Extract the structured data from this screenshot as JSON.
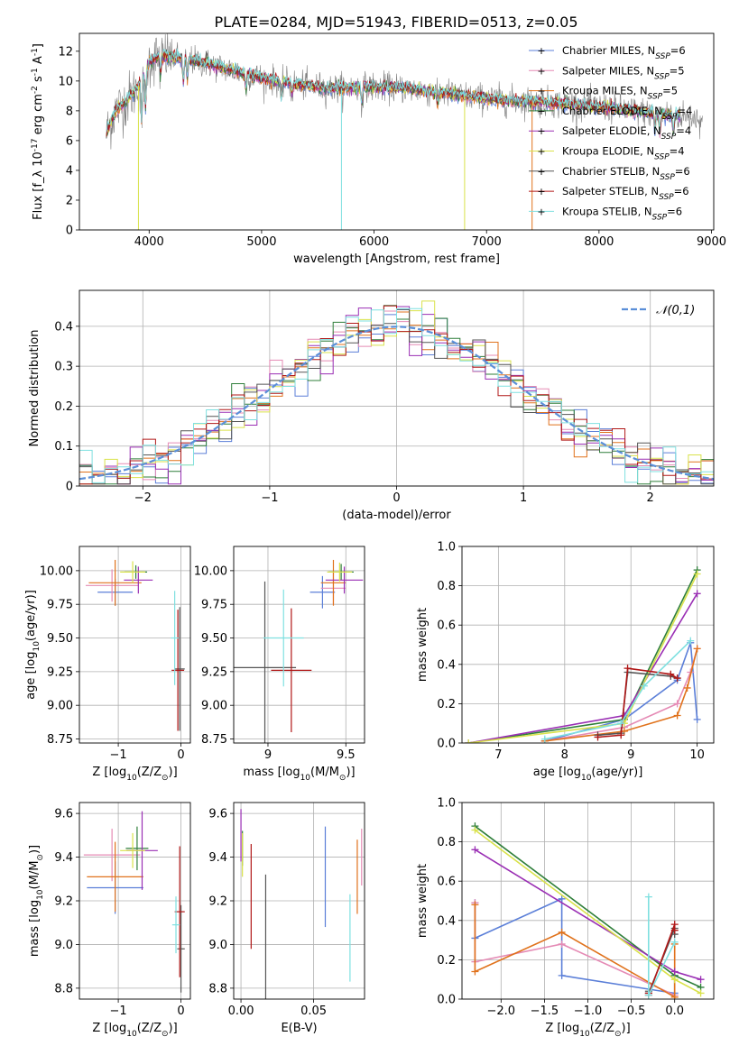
{
  "figure_title": "PLATE=0284, MJD=51943, FIBERID=0513, z=0.05",
  "colors": {
    "Chabrier MILES": "#5b7fd8",
    "Salpeter MILES": "#e58bb5",
    "Kroupa MILES": "#e0721c",
    "Chabrier ELODIE": "#2f7f3a",
    "Salpeter ELODIE": "#9a2fb4",
    "Kroupa ELODIE": "#d9e24a",
    "Chabrier STELIB": "#555555",
    "Salpeter STELIB": "#b01717",
    "Kroupa STELIB": "#7fe0e0",
    "data": "#808080",
    "gauss": "#5b8fd8"
  },
  "chart_data": [
    {
      "id": "spectrum",
      "type": "line",
      "title": "PLATE=0284, MJD=51943, FIBERID=0513, z=0.05",
      "xlabel": "wavelength [Angstrom, rest frame]",
      "ylabel": "Flux [f_λ 10^-17 erg cm^-2 s^-1 A^-1]",
      "xlim": [
        3380,
        9020
      ],
      "ylim": [
        0,
        13.2
      ],
      "xticks": [
        4000,
        5000,
        6000,
        7000,
        8000,
        9000
      ],
      "yticks": [
        0,
        2,
        4,
        6,
        8,
        10,
        12
      ],
      "grid": false,
      "legend_position": "upper right",
      "legend": [
        "Chabrier MILES, N_SSP=6",
        "Salpeter MILES, N_SSP=5",
        "Kroupa MILES, N_SSP=5",
        "Chabrier ELODIE, N_SSP=4",
        "Salpeter ELODIE, N_SSP=4",
        "Kroupa ELODIE, N_SSP=4",
        "Chabrier STELIB, N_SSP=6",
        "Salpeter STELIB, N_SSP=6",
        "Kroupa STELIB, N_SSP=6"
      ],
      "continuum": {
        "x": [
          3620,
          3700,
          3800,
          3900,
          4000,
          4100,
          4300,
          4500,
          4700,
          5000,
          5300,
          5600,
          6000,
          6300,
          6600,
          6900,
          7200,
          7500,
          7800,
          8100,
          8400,
          8700,
          8900
        ],
        "y": [
          6.5,
          8.0,
          8.7,
          9.6,
          11.3,
          11.7,
          11.5,
          11.2,
          10.8,
          10.2,
          9.8,
          9.5,
          9.6,
          9.5,
          9.2,
          8.9,
          8.7,
          8.6,
          8.4,
          8.2,
          7.9,
          7.7,
          7.5
        ]
      },
      "data_noise_sigma": 0.9,
      "features": [
        {
          "x": 3933,
          "depth": 3.0
        },
        {
          "x": 3968,
          "depth": 2.5
        },
        {
          "x": 4101,
          "depth": 1.2
        },
        {
          "x": 4304,
          "depth": 1.5
        },
        {
          "x": 4340,
          "depth": 1.2
        },
        {
          "x": 4861,
          "depth": 1.0
        },
        {
          "x": 5175,
          "depth": 1.3
        },
        {
          "x": 5270,
          "depth": 0.7
        },
        {
          "x": 5890,
          "depth": 1.0
        },
        {
          "x": 6563,
          "depth": 0.7
        },
        {
          "x": 8498,
          "depth": 1.1
        },
        {
          "x": 8542,
          "depth": 1.3
        },
        {
          "x": 8662,
          "depth": 1.2
        }
      ],
      "spikes": [
        {
          "x": 3905,
          "color": "#d9e24a"
        },
        {
          "x": 5710,
          "color": "#7fe0e0"
        },
        {
          "x": 6805,
          "color": "#d9e24a"
        },
        {
          "x": 7405,
          "color": "#e0721c"
        }
      ]
    },
    {
      "id": "residuals",
      "type": "histogram",
      "xlabel": "(data-model)/error",
      "ylabel": "Normed distribution",
      "xlim": [
        -2.5,
        2.5
      ],
      "ylim": [
        0,
        0.49
      ],
      "xticks": [
        -2,
        -1,
        0,
        1,
        2
      ],
      "yticks": [
        0.0,
        0.1,
        0.2,
        0.3,
        0.4
      ],
      "grid": true,
      "legend_position": "upper right",
      "legend": [
        "𝒩(0,1)"
      ],
      "bin_width": 0.1,
      "series_order": [
        "Chabrier MILES",
        "Salpeter MILES",
        "Kroupa MILES",
        "Chabrier ELODIE",
        "Salpeter ELODIE",
        "Kroupa ELODIE",
        "Chabrier STELIB",
        "Salpeter STELIB",
        "Kroupa STELIB"
      ],
      "gauss_sigma": 1.0
    },
    {
      "id": "age_vs_Z",
      "type": "errorbar",
      "xlabel": "Z [log10(Z/Z⊙)]",
      "ylabel": "age  [log10(age/yr)]",
      "xlim": [
        -1.62,
        0.15
      ],
      "ylim": [
        8.72,
        10.18
      ],
      "xticks": [
        -1,
        0
      ],
      "yticks": [
        8.75,
        9.0,
        9.25,
        9.5,
        9.75,
        10.0
      ],
      "ytick_format": 2,
      "grid": true,
      "points": [
        {
          "series": "Chabrier MILES",
          "x": -1.05,
          "xerr": 0.28,
          "y": 9.84,
          "yerr": 0.1
        },
        {
          "series": "Salpeter MILES",
          "x": -1.1,
          "xerr": 0.42,
          "y": 9.89,
          "yerr": 0.12
        },
        {
          "series": "Kroupa MILES",
          "x": -1.05,
          "xerr": 0.42,
          "y": 9.91,
          "yerr": 0.17
        },
        {
          "series": "Chabrier ELODIE",
          "x": -0.72,
          "xerr": 0.18,
          "y": 9.99,
          "yerr": 0.05
        },
        {
          "series": "Salpeter ELODIE",
          "x": -0.68,
          "xerr": 0.23,
          "y": 9.93,
          "yerr": 0.1
        },
        {
          "series": "Kroupa ELODIE",
          "x": -0.77,
          "xerr": 0.2,
          "y": 9.99,
          "yerr": 0.08
        },
        {
          "series": "Chabrier STELIB",
          "x": -0.02,
          "xerr": 0.08,
          "y": 9.27,
          "yerr": 0.46
        },
        {
          "series": "Salpeter STELIB",
          "x": -0.05,
          "xerr": 0.1,
          "y": 9.26,
          "yerr": 0.45
        },
        {
          "series": "Kroupa STELIB",
          "x": -0.1,
          "xerr": 0.06,
          "y": 9.5,
          "yerr": 0.35
        }
      ]
    },
    {
      "id": "age_vs_mass",
      "type": "errorbar",
      "xlabel": "mass [log10(M/M⊙)]",
      "ylabel": "",
      "xlim": [
        8.78,
        9.62
      ],
      "ylim": [
        8.72,
        10.18
      ],
      "xticks": [
        9.0,
        9.5
      ],
      "yticks": [
        8.75,
        9.0,
        9.25,
        9.5,
        9.75,
        10.0
      ],
      "ytick_format": 2,
      "grid": true,
      "points": [
        {
          "series": "Chabrier MILES",
          "x": 9.35,
          "xerr": 0.08,
          "y": 9.84,
          "yerr": 0.12
        },
        {
          "series": "Salpeter MILES",
          "x": 9.42,
          "xerr": 0.08,
          "y": 9.87,
          "yerr": 0.12
        },
        {
          "series": "Kroupa MILES",
          "x": 9.42,
          "xerr": 0.08,
          "y": 9.91,
          "yerr": 0.17
        },
        {
          "series": "Chabrier ELODIE",
          "x": 9.47,
          "xerr": 0.08,
          "y": 9.99,
          "yerr": 0.06
        },
        {
          "series": "Salpeter ELODIE",
          "x": 9.49,
          "xerr": 0.12,
          "y": 9.93,
          "yerr": 0.1
        },
        {
          "series": "Kroupa ELODIE",
          "x": 9.46,
          "xerr": 0.08,
          "y": 9.99,
          "yerr": 0.07
        },
        {
          "series": "Chabrier STELIB",
          "x": 8.98,
          "xerr": 0.2,
          "y": 9.28,
          "yerr": 0.64
        },
        {
          "series": "Salpeter STELIB",
          "x": 9.15,
          "xerr": 0.13,
          "y": 9.26,
          "yerr": 0.46
        },
        {
          "series": "Kroupa STELIB",
          "x": 9.1,
          "xerr": 0.13,
          "y": 9.5,
          "yerr": 0.36
        }
      ]
    },
    {
      "id": "weight_vs_age",
      "type": "line",
      "xlabel": "age  [log10(age/yr)]",
      "ylabel": "mass weight",
      "xlim": [
        6.45,
        10.25
      ],
      "ylim": [
        0,
        1
      ],
      "xticks": [
        7,
        8,
        9,
        10
      ],
      "yticks": [
        0.0,
        0.2,
        0.4,
        0.6,
        0.8,
        1.0
      ],
      "ytick_format": 1,
      "grid": true,
      "series": [
        {
          "name": "Chabrier MILES",
          "x": [
            7.7,
            8.9,
            9.7,
            9.9,
            10.0
          ],
          "y": [
            0.01,
            0.12,
            0.32,
            0.51,
            0.12
          ]
        },
        {
          "name": "Salpeter MILES",
          "x": [
            7.7,
            8.9,
            9.7,
            9.9,
            10.0
          ],
          "y": [
            0.01,
            0.08,
            0.2,
            0.36,
            0.48
          ]
        },
        {
          "name": "Kroupa MILES",
          "x": [
            7.7,
            8.9,
            9.7,
            9.85,
            10.0
          ],
          "y": [
            0.01,
            0.06,
            0.14,
            0.28,
            0.48
          ]
        },
        {
          "name": "Chabrier ELODIE",
          "x": [
            6.55,
            8.9,
            10.0
          ],
          "y": [
            0.0,
            0.12,
            0.88
          ]
        },
        {
          "name": "Salpeter ELODIE",
          "x": [
            6.55,
            8.9,
            10.0
          ],
          "y": [
            0.0,
            0.14,
            0.76
          ]
        },
        {
          "name": "Kroupa ELODIE",
          "x": [
            6.55,
            8.9,
            10.0
          ],
          "y": [
            0.0,
            0.1,
            0.86
          ]
        },
        {
          "name": "Chabrier STELIB",
          "x": [
            8.5,
            8.85,
            8.95,
            9.6,
            9.7
          ],
          "y": [
            0.04,
            0.05,
            0.36,
            0.34,
            0.33
          ]
        },
        {
          "name": "Salpeter STELIB",
          "x": [
            8.5,
            8.85,
            8.95,
            9.6,
            9.7
          ],
          "y": [
            0.03,
            0.04,
            0.38,
            0.35,
            0.33
          ]
        },
        {
          "name": "Kroupa STELIB",
          "x": [
            7.7,
            8.85,
            9.2,
            9.9
          ],
          "y": [
            0.02,
            0.1,
            0.29,
            0.52
          ]
        }
      ]
    },
    {
      "id": "mass_vs_Z",
      "type": "errorbar",
      "xlabel": "Z [log10(Z/Z⊙)]",
      "ylabel": "mass [log10(M/M⊙)]",
      "xlim": [
        -1.62,
        0.15
      ],
      "ylim": [
        8.75,
        9.65
      ],
      "xticks": [
        -1,
        0
      ],
      "yticks": [
        8.8,
        9.0,
        9.2,
        9.4,
        9.6
      ],
      "ytick_format": 1,
      "grid": true,
      "points": [
        {
          "series": "Chabrier MILES",
          "x": -1.05,
          "xerr": 0.45,
          "y": 9.26,
          "yerr": 0.12
        },
        {
          "series": "Salpeter MILES",
          "x": -1.1,
          "xerr": 0.45,
          "y": 9.41,
          "yerr": 0.12
        },
        {
          "series": "Kroupa MILES",
          "x": -1.05,
          "xerr": 0.45,
          "y": 9.31,
          "yerr": 0.16
        },
        {
          "series": "Chabrier ELODIE",
          "x": -0.7,
          "xerr": 0.18,
          "y": 9.44,
          "yerr": 0.1
        },
        {
          "series": "Salpeter ELODIE",
          "x": -0.62,
          "xerr": 0.25,
          "y": 9.43,
          "yerr": 0.18
        },
        {
          "series": "Kroupa ELODIE",
          "x": -0.77,
          "xerr": 0.2,
          "y": 9.43,
          "yerr": 0.08
        },
        {
          "series": "Chabrier STELIB",
          "x": 0.0,
          "xerr": 0.06,
          "y": 8.98,
          "yerr": 0.2
        },
        {
          "series": "Salpeter STELIB",
          "x": -0.02,
          "xerr": 0.08,
          "y": 9.15,
          "yerr": 0.3
        },
        {
          "series": "Kroupa STELIB",
          "x": -0.08,
          "xerr": 0.06,
          "y": 9.09,
          "yerr": 0.13
        }
      ]
    },
    {
      "id": "mass_vs_EBV",
      "type": "errorbar",
      "xlabel": "E(B-V)",
      "ylabel": "",
      "xlim": [
        -0.005,
        0.085
      ],
      "ylim": [
        8.75,
        9.65
      ],
      "xticks": [
        0.0,
        0.05
      ],
      "xtick_format": 2,
      "yticks": [
        8.8,
        9.0,
        9.2,
        9.4,
        9.6
      ],
      "ytick_format": 1,
      "grid": true,
      "points": [
        {
          "series": "Chabrier MILES",
          "x": 0.058,
          "xerr": 0,
          "y": 9.31,
          "yerr": 0.23
        },
        {
          "series": "Salpeter MILES",
          "x": 0.083,
          "xerr": 0,
          "y": 9.4,
          "yerr": 0.13
        },
        {
          "series": "Kroupa MILES",
          "x": 0.08,
          "xerr": 0,
          "y": 9.31,
          "yerr": 0.17
        },
        {
          "series": "Chabrier ELODIE",
          "x": 0.001,
          "xerr": 0,
          "y": 9.44,
          "yerr": 0.08
        },
        {
          "series": "Salpeter ELODIE",
          "x": 0.0,
          "xerr": 0,
          "y": 9.5,
          "yerr": 0.12
        },
        {
          "series": "Kroupa ELODIE",
          "x": 0.001,
          "xerr": 0,
          "y": 9.41,
          "yerr": 0.1
        },
        {
          "series": "Chabrier STELIB",
          "x": 0.017,
          "xerr": 0,
          "y": 9.0,
          "yerr": 0.32
        },
        {
          "series": "Salpeter STELIB",
          "x": 0.007,
          "xerr": 0,
          "y": 9.22,
          "yerr": 0.24
        },
        {
          "series": "Kroupa STELIB",
          "x": 0.075,
          "xerr": 0,
          "y": 9.03,
          "yerr": 0.2
        }
      ]
    },
    {
      "id": "weight_vs_Z",
      "type": "line",
      "xlabel": "Z [log10(Z/Z⊙)]",
      "ylabel": "mass weight",
      "xlim": [
        -2.45,
        0.45
      ],
      "ylim": [
        0,
        1
      ],
      "xticks": [
        -2.0,
        -1.5,
        -1.0,
        -0.5,
        0.0
      ],
      "xtick_format": 1,
      "yticks": [
        0.0,
        0.2,
        0.4,
        0.6,
        0.8,
        1.0
      ],
      "ytick_format": 1,
      "grid": true,
      "series": [
        {
          "name": "Chabrier MILES",
          "x": [
            -2.3,
            -2.3,
            -1.3,
            -1.3,
            0.0,
            0.0
          ],
          "y": [
            0.49,
            0.31,
            0.51,
            0.12,
            0.03,
            0.12
          ]
        },
        {
          "name": "Salpeter MILES",
          "x": [
            -2.3,
            -2.3,
            -1.3,
            0.0
          ],
          "y": [
            0.49,
            0.19,
            0.28,
            0.02
          ]
        },
        {
          "name": "Kroupa MILES",
          "x": [
            -2.3,
            -2.3,
            -1.3,
            0.0,
            0.0
          ],
          "y": [
            0.48,
            0.14,
            0.34,
            0.01,
            0.28
          ]
        },
        {
          "name": "Chabrier ELODIE",
          "x": [
            -2.3,
            0.0,
            0.3
          ],
          "y": [
            0.88,
            0.12,
            0.06
          ]
        },
        {
          "name": "Salpeter ELODIE",
          "x": [
            -2.3,
            0.0,
            0.3
          ],
          "y": [
            0.76,
            0.14,
            0.1
          ]
        },
        {
          "name": "Kroupa ELODIE",
          "x": [
            -2.3,
            0.0,
            0.3
          ],
          "y": [
            0.86,
            0.1,
            0.03
          ]
        },
        {
          "name": "Chabrier STELIB",
          "x": [
            -0.3,
            -0.3,
            0.0,
            0.0
          ],
          "y": [
            0.04,
            0.03,
            0.36,
            0.33
          ]
        },
        {
          "name": "Salpeter STELIB",
          "x": [
            -0.3,
            -0.3,
            0.0,
            0.0
          ],
          "y": [
            0.03,
            0.02,
            0.38,
            0.35
          ]
        },
        {
          "name": "Kroupa STELIB",
          "x": [
            -0.3,
            -0.3,
            0.0
          ],
          "y": [
            0.52,
            0.02,
            0.29
          ]
        }
      ]
    }
  ]
}
